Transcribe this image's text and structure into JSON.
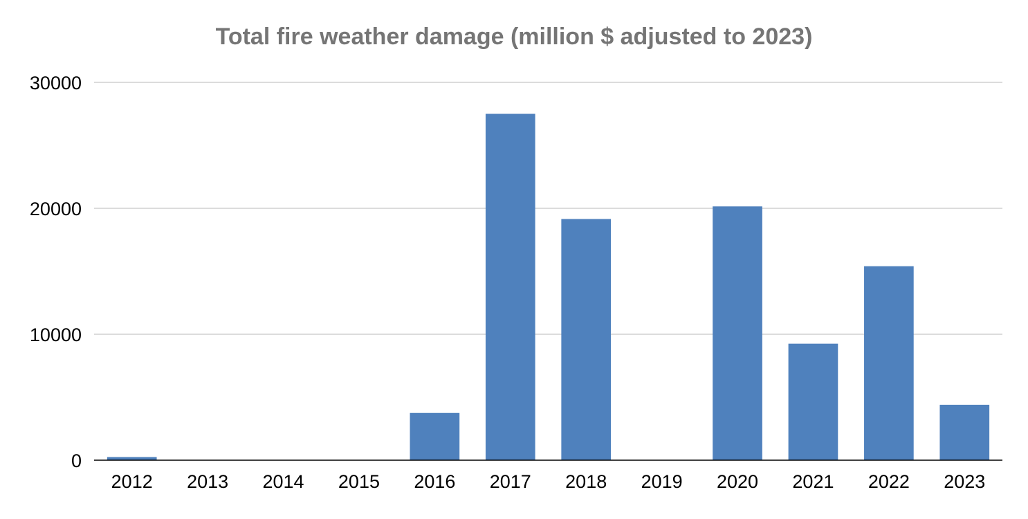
{
  "chart_data": {
    "type": "bar",
    "title": "Total fire weather damage (million $ adjusted to 2023)",
    "xlabel": "",
    "ylabel": "",
    "categories": [
      "2012",
      "2013",
      "2014",
      "2015",
      "2016",
      "2017",
      "2018",
      "2019",
      "2020",
      "2021",
      "2022",
      "2023"
    ],
    "values": [
      250,
      0,
      0,
      0,
      3750,
      27500,
      19150,
      0,
      20150,
      9250,
      15400,
      4400
    ],
    "ylim": [
      0,
      30000
    ],
    "yticks": [
      "0",
      "10000",
      "20000",
      "30000"
    ],
    "grid": true,
    "legend": "none",
    "colors": {
      "bar": "#4f81bd",
      "grid": "#d0d0d0",
      "axis": "#000000",
      "title": "#757575"
    }
  }
}
